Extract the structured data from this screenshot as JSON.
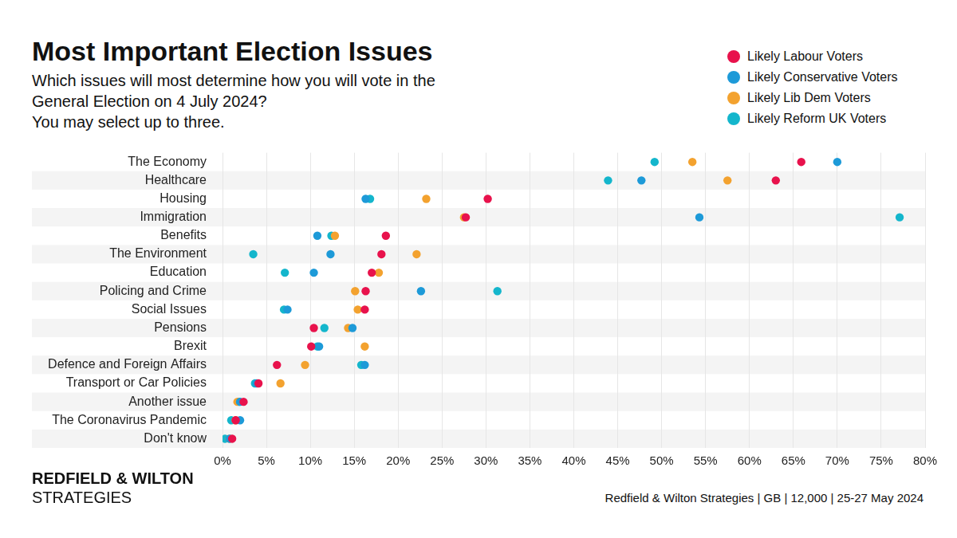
{
  "chart_data": {
    "type": "scatter",
    "orientation": "horizontal",
    "title": "Most Important Election Issues",
    "subtitle": [
      "Which issues will most determine how you will vote in the",
      "General Election on 4 July 2024?",
      "You may select up to three."
    ],
    "brand": [
      "REDFIELD & WILTON",
      "STRATEGIES"
    ],
    "source": "Redfield & Wilton Strategies | GB | 12,000 | 25-27 May 2024",
    "categories": [
      "The Economy",
      "Healthcare",
      "Housing",
      "Immigration",
      "Benefits",
      "The Environment",
      "Education",
      "Policing and Crime",
      "Social Issues",
      "Pensions",
      "Brexit",
      "Defence and Foreign Affairs",
      "Transport or Car Policies",
      "Another issue",
      "The Coronavirus Pandemic",
      "Don't know"
    ],
    "series": [
      {
        "name": "Likely Labour Voters",
        "color": "#e8124c",
        "values": [
          65.9,
          63.0,
          30.2,
          27.7,
          18.6,
          18.1,
          17.0,
          16.3,
          16.2,
          10.4,
          10.1,
          6.2,
          4.1,
          2.4,
          1.5,
          1.1
        ]
      },
      {
        "name": "Likely Conservative Voters",
        "color": "#1d9ad8",
        "values": [
          70.0,
          47.7,
          16.3,
          54.3,
          10.8,
          12.3,
          10.4,
          22.6,
          7.4,
          14.8,
          11.0,
          16.2,
          3.9,
          2.0,
          2.0,
          0.8
        ]
      },
      {
        "name": "Likely Lib Dem Voters",
        "color": "#f3a22f",
        "values": [
          53.5,
          57.5,
          23.2,
          27.5,
          12.8,
          22.1,
          17.8,
          15.1,
          15.4,
          14.3,
          16.2,
          9.4,
          6.6,
          1.7,
          1.5,
          0.8
        ]
      },
      {
        "name": "Likely Reform UK Voters",
        "color": "#14b6cc",
        "values": [
          49.2,
          43.9,
          16.8,
          77.1,
          12.4,
          3.5,
          7.1,
          31.3,
          7.0,
          11.6,
          10.8,
          15.8,
          3.7,
          1.9,
          1.0,
          0.3
        ]
      }
    ],
    "xlim": [
      0,
      80
    ],
    "xticks": [
      {
        "value": 0,
        "label": "0%"
      },
      {
        "value": 5,
        "label": "5%"
      },
      {
        "value": 10,
        "label": "10%"
      },
      {
        "value": 15,
        "label": "15%"
      },
      {
        "value": 20,
        "label": "20%"
      },
      {
        "value": 25,
        "label": "25%"
      },
      {
        "value": 30,
        "label": "30%"
      },
      {
        "value": 35,
        "label": "35%"
      },
      {
        "value": 40,
        "label": "40%"
      },
      {
        "value": 45,
        "label": "45%"
      },
      {
        "value": 50,
        "label": "50%"
      },
      {
        "value": 55,
        "label": "55%"
      },
      {
        "value": 60,
        "label": "60%"
      },
      {
        "value": 65,
        "label": "65%"
      },
      {
        "value": 70,
        "label": "70%"
      },
      {
        "value": 75,
        "label": "75%"
      },
      {
        "value": 80,
        "label": "80%"
      }
    ],
    "grid": true,
    "legend": "top-right",
    "marker": "circle",
    "data_labels": false
  }
}
